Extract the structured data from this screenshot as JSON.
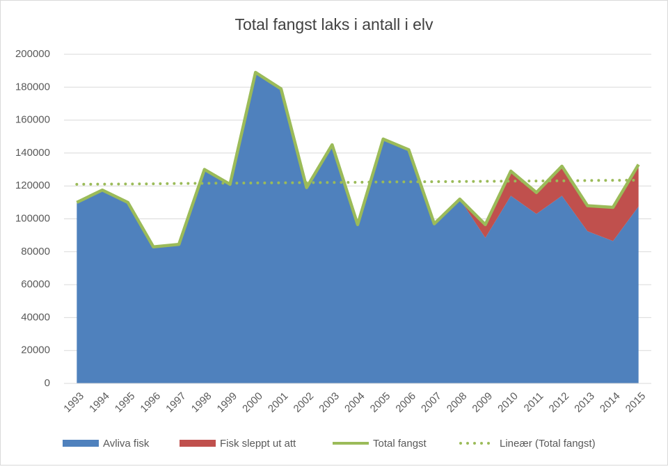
{
  "chart_data": {
    "type": "area",
    "title": "Total fangst laks i antall i elv",
    "categories": [
      "1993",
      "1994",
      "1995",
      "1996",
      "1997",
      "1998",
      "1999",
      "2000",
      "2001",
      "2002",
      "2003",
      "2004",
      "2005",
      "2006",
      "2007",
      "2008",
      "2009",
      "2010",
      "2011",
      "2012",
      "2013",
      "2014",
      "2015"
    ],
    "series": [
      {
        "name": "Avliva fisk",
        "color": "#4f81bd",
        "type": "area",
        "stacked": true,
        "values": [
          110000,
          117500,
          110000,
          83000,
          84500,
          130000,
          121000,
          189000,
          179000,
          119000,
          145000,
          96500,
          148500,
          142000,
          97000,
          112000,
          88500,
          114000,
          103000,
          114000,
          92500,
          86500,
          107500
        ]
      },
      {
        "name": "Fisk sleppt ut att",
        "color": "#c0504d",
        "type": "area",
        "stacked": true,
        "values": [
          0,
          0,
          0,
          0,
          0,
          0,
          0,
          0,
          0,
          0,
          0,
          0,
          0,
          0,
          0,
          0,
          8000,
          15000,
          13000,
          18000,
          15500,
          20500,
          25500
        ]
      },
      {
        "name": "Total fangst",
        "color": "#9bbb59",
        "type": "line",
        "linestyle": "solid",
        "values": [
          110000,
          117500,
          110000,
          83000,
          84500,
          130000,
          121000,
          189000,
          179000,
          119000,
          145000,
          96500,
          148500,
          142000,
          97000,
          112000,
          96500,
          129000,
          116000,
          132000,
          108000,
          107000,
          133000
        ]
      },
      {
        "name": "Lineær (Total fangst)",
        "color": "#9bbb59",
        "type": "line",
        "linestyle": "dotted",
        "values": [
          121000,
          121100,
          121200,
          121300,
          121500,
          121600,
          121700,
          121800,
          121900,
          122000,
          122100,
          122200,
          122400,
          122500,
          122600,
          122700,
          122800,
          122900,
          123000,
          123100,
          123300,
          123400,
          123500
        ]
      }
    ],
    "ylim": [
      0,
      200000
    ],
    "yticks": [
      0,
      20000,
      40000,
      60000,
      80000,
      100000,
      120000,
      140000,
      160000,
      180000,
      200000
    ],
    "grid": true,
    "legend": "bottom"
  }
}
